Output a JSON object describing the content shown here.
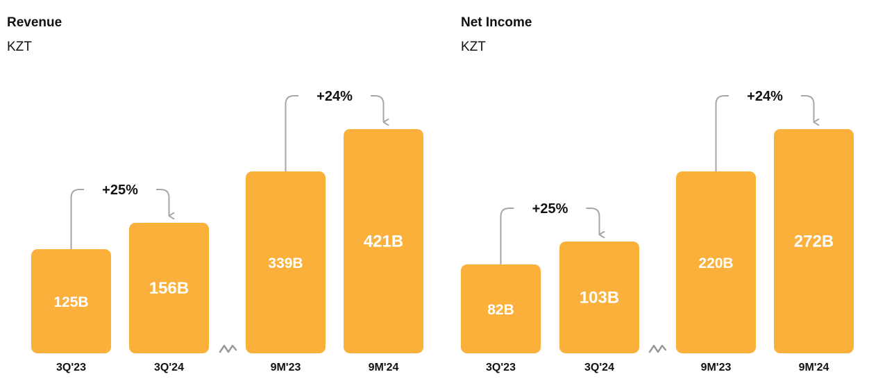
{
  "colors": {
    "bar": "#FBB03B",
    "arrow": "#A6A6A6",
    "text": "#111111",
    "bar_text": "#FFFFFF"
  },
  "chart_data": [
    {
      "type": "bar",
      "title": "Revenue",
      "unit": "KZT",
      "categories": [
        "3Q'23",
        "3Q'24",
        "9M'23",
        "9M'24"
      ],
      "values": [
        125,
        156,
        339,
        421
      ],
      "value_labels": [
        "125B",
        "156B",
        "339B",
        "421B"
      ],
      "axis_break_between": [
        1,
        2
      ],
      "ylim_groups": {
        "quarter": [
          0,
          190
        ],
        "nine_month": [
          0,
          440
        ]
      },
      "comparisons": [
        {
          "from": 0,
          "to": 1,
          "label": "+25%"
        },
        {
          "from": 2,
          "to": 3,
          "label": "+24%"
        }
      ],
      "grid": false,
      "legend": "none"
    },
    {
      "type": "bar",
      "title": "Net Income",
      "unit": "KZT",
      "categories": [
        "3Q'23",
        "3Q'24",
        "9M'23",
        "9M'24"
      ],
      "values": [
        82,
        103,
        220,
        272
      ],
      "value_labels": [
        "82B",
        "103B",
        "220B",
        "272B"
      ],
      "axis_break_between": [
        1,
        2
      ],
      "ylim_groups": {
        "quarter": [
          0,
          160
        ],
        "nine_month": [
          0,
          285
        ]
      },
      "comparisons": [
        {
          "from": 0,
          "to": 1,
          "label": "+25%"
        },
        {
          "from": 2,
          "to": 3,
          "label": "+24%"
        }
      ],
      "grid": false,
      "legend": "none"
    }
  ]
}
